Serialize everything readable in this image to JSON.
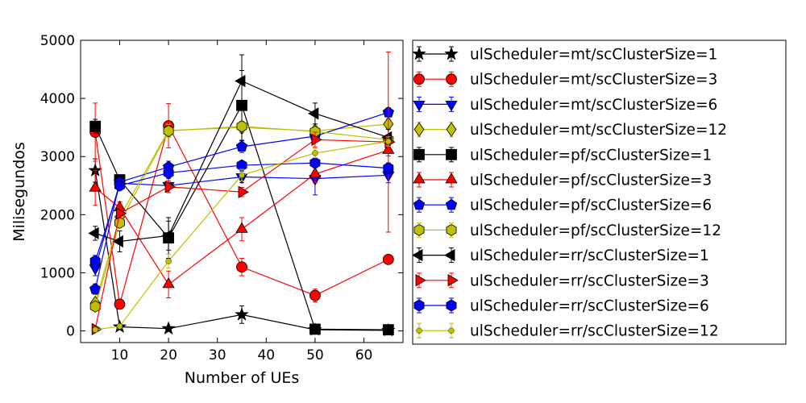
{
  "chart_data": {
    "type": "line",
    "title": "",
    "xlabel": "Number of UEs",
    "ylabel": "Milisegundos",
    "xlim": [
      2,
      68
    ],
    "ylim": [
      -200,
      5000
    ],
    "xticks": [
      "10",
      "20",
      "30",
      "40",
      "50",
      "60"
    ],
    "yticks": [
      "0",
      "1000",
      "2000",
      "3000",
      "4000",
      "5000"
    ],
    "grid": false,
    "legend": "outside-right",
    "x": [
      5,
      10,
      20,
      35,
      50,
      65
    ],
    "series": [
      {
        "name": "ulScheduler=mt/scClusterSize=1",
        "color": "#000000",
        "marker": "star",
        "values": [
          2760,
          70,
          40,
          280,
          20,
          10
        ],
        "errors": [
          200,
          40,
          30,
          150,
          20,
          10
        ]
      },
      {
        "name": "ulScheduler=mt/scClusterSize=3",
        "color": "#ff0000",
        "marker": "circle",
        "values": [
          3420,
          460,
          3530,
          1100,
          610,
          1230
        ],
        "errors": [
          500,
          80,
          380,
          150,
          110,
          60
        ]
      },
      {
        "name": "ulScheduler=mt/scClusterSize=6",
        "color": "#0000ff",
        "marker": "triangle-down",
        "values": [
          1080,
          2540,
          2500,
          2650,
          2620,
          2680
        ],
        "errors": [
          130,
          80,
          120,
          100,
          280,
          130
        ]
      },
      {
        "name": "ulScheduler=mt/scClusterSize=12",
        "color": "#bfbf00",
        "marker": "diamond",
        "values": [
          480,
          1960,
          3450,
          3500,
          3440,
          3560
        ],
        "errors": [
          60,
          80,
          110,
          90,
          90,
          90
        ]
      },
      {
        "name": "ulScheduler=pf/scClusterSize=1",
        "color": "#000000",
        "marker": "square",
        "values": [
          3520,
          2600,
          1600,
          3880,
          30,
          20
        ],
        "errors": [
          120,
          60,
          350,
          600,
          20,
          10
        ]
      },
      {
        "name": "ulScheduler=pf/scClusterSize=3",
        "color": "#ff0000",
        "marker": "triangle-up",
        "values": [
          2460,
          2120,
          800,
          1750,
          2700,
          3110
        ],
        "errors": [
          300,
          100,
          230,
          200,
          150,
          100
        ]
      },
      {
        "name": "ulScheduler=pf/scClusterSize=6",
        "color": "#0000ff",
        "marker": "pentagon",
        "values": [
          720,
          2560,
          2820,
          3170,
          3350,
          3760
        ],
        "errors": [
          90,
          80,
          100,
          100,
          80,
          80
        ]
      },
      {
        "name": "ulScheduler=pf/scClusterSize=12",
        "color": "#bfbf00",
        "marker": "hexagon",
        "values": [
          420,
          1860,
          3440,
          3520,
          3430,
          3290
        ],
        "errors": [
          60,
          80,
          110,
          90,
          90,
          80
        ]
      },
      {
        "name": "ulScheduler=rr/scClusterSize=1",
        "color": "#000000",
        "marker": "triangle-left",
        "values": [
          1680,
          1540,
          1640,
          4300,
          3740,
          3330
        ],
        "errors": [
          120,
          180,
          250,
          450,
          180,
          140
        ]
      },
      {
        "name": "ulScheduler=rr/scClusterSize=3",
        "color": "#ff0000",
        "marker": "triangle-right",
        "values": [
          30,
          2020,
          2480,
          2390,
          3290,
          3250
        ],
        "errors": [
          20,
          80,
          100,
          80,
          130,
          1550
        ]
      },
      {
        "name": "ulScheduler=rr/scClusterSize=6",
        "color": "#0000ff",
        "marker": "hexagon",
        "values": [
          1200,
          2500,
          2720,
          2850,
          2890,
          2800
        ],
        "errors": [
          100,
          80,
          80,
          70,
          80,
          90
        ]
      },
      {
        "name": "ulScheduler=rr/scClusterSize=12",
        "color": "#bfbf00",
        "marker": "dot",
        "values": [
          20,
          80,
          1200,
          2680,
          3060,
          3260
        ],
        "errors": [
          10,
          40,
          120,
          100,
          80,
          80
        ]
      }
    ]
  }
}
